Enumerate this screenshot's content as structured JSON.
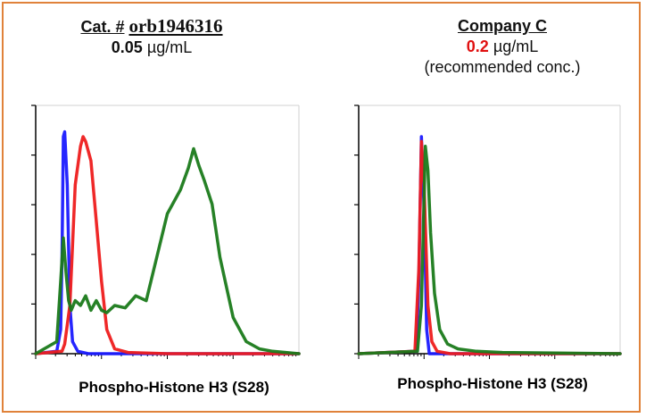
{
  "panels": [
    {
      "title_prefix": "Cat. #",
      "title_catalog": "orb1946316",
      "concentration_value": "0.05",
      "concentration_unit": "µg/mL",
      "note": "",
      "xlabel": "Phospho-Histone H3 (S28)"
    },
    {
      "title_prefix": "Company C",
      "title_catalog": "",
      "concentration_value": "0.2",
      "concentration_unit": "µg/mL",
      "note": "(recommended conc.)",
      "xlabel": "Phospho-Histone H3 (S28)"
    }
  ],
  "colors": {
    "border": "#e0823a",
    "blue": "#1a1aff",
    "red": "#ee1c1c",
    "green": "#1a7a1a",
    "highlight_red": "#e01010"
  },
  "chart_data": [
    {
      "type": "line",
      "xlabel": "Phospho-Histone H3 (S28)",
      "ylim": [
        0,
        100
      ],
      "series": [
        {
          "color": "blue",
          "x": [
            0,
            8,
            9.5,
            10,
            10.5,
            11,
            12,
            13,
            14,
            16,
            20,
            100
          ],
          "y": [
            0,
            1,
            10,
            40,
            90,
            92,
            70,
            20,
            5,
            1,
            0,
            0
          ]
        },
        {
          "color": "red",
          "x": [
            0,
            10,
            11,
            13,
            15,
            17,
            18,
            19,
            21,
            23,
            25,
            27,
            30,
            35,
            50,
            100
          ],
          "y": [
            0,
            1,
            4,
            20,
            70,
            86,
            90,
            88,
            80,
            55,
            30,
            10,
            2,
            0.5,
            0,
            0
          ]
        },
        {
          "color": "green",
          "x": [
            0,
            8,
            9.5,
            10.5,
            11.5,
            12.5,
            13.5,
            15,
            17,
            19,
            21,
            23,
            25,
            27,
            30,
            34,
            38,
            42,
            46,
            50,
            55,
            58,
            60,
            62,
            64,
            67,
            70,
            75,
            80,
            85,
            90,
            95,
            100
          ],
          "y": [
            0,
            5,
            30,
            48,
            34,
            22,
            18,
            22,
            20,
            24,
            18,
            22,
            18,
            17,
            20,
            19,
            24,
            22,
            40,
            58,
            68,
            77,
            85,
            78,
            72,
            62,
            40,
            15,
            5,
            2,
            1,
            0.5,
            0
          ]
        }
      ]
    },
    {
      "type": "line",
      "xlabel": "Phospho-Histone H3 (S28)",
      "ylim": [
        0,
        100
      ],
      "series": [
        {
          "color": "blue",
          "x": [
            0,
            22,
            23,
            24,
            25,
            26,
            27,
            100
          ],
          "y": [
            0,
            1,
            30,
            90,
            60,
            10,
            0,
            0
          ]
        },
        {
          "color": "red",
          "x": [
            0,
            21.5,
            23,
            24,
            25,
            26.5,
            28,
            30,
            35,
            100
          ],
          "y": [
            0,
            1,
            35,
            88,
            70,
            20,
            5,
            1,
            0,
            0
          ]
        },
        {
          "color": "green",
          "x": [
            0,
            22.5,
            24,
            25.5,
            26.5,
            27.5,
            29,
            31,
            34,
            38,
            45,
            55,
            100
          ],
          "y": [
            0,
            1,
            20,
            86,
            76,
            50,
            25,
            10,
            4,
            2,
            1,
            0.5,
            0
          ]
        }
      ]
    }
  ]
}
